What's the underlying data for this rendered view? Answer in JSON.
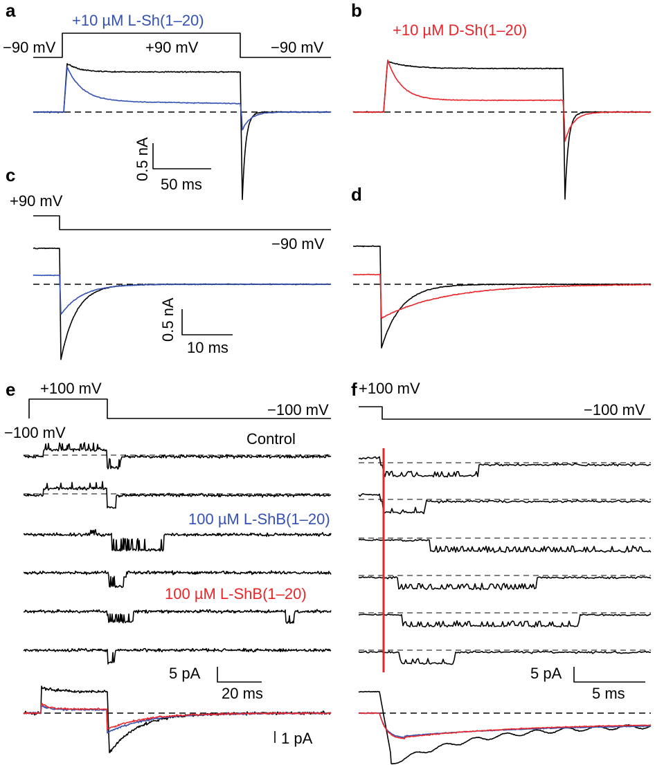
{
  "colors": {
    "control": "#000000",
    "l_peptide": "#3451b2",
    "d_peptide": "#e8262a",
    "baseline": "#000000"
  },
  "panels": {
    "a": {
      "letter": "a",
      "legend": "+10 µM L-Sh(1–20)",
      "v_hold": "−90 mV",
      "v_step": "+90 mV",
      "v_return": "−90 mV",
      "scale_y": "0.5 nA",
      "scale_x": "50 ms"
    },
    "b": {
      "letter": "b",
      "legend": "+10 µM D-Sh(1–20)"
    },
    "c": {
      "letter": "c",
      "v_step": "+90 mV",
      "v_return": "−90 mV",
      "scale_y": "0.5 nA",
      "scale_x": "10 ms"
    },
    "d": {
      "letter": "d"
    },
    "e": {
      "letter": "e",
      "v_step": "+100 mV",
      "v_hold": "−100 mV",
      "v_return": "−100 mV",
      "control_label": "Control",
      "blue_label": "100 µM L-ShB(1–20)",
      "red_label": "100 µM L-ShB(1–20)",
      "scale_y": "5 pA",
      "scale_x": "20 ms",
      "avg_scale": "1 pA"
    },
    "f": {
      "letter": "f",
      "v_step": "+100 mV",
      "v_return": "−100 mV",
      "scale_y": "5 pA",
      "scale_x": "5 ms"
    }
  },
  "chart_data": [
    {
      "panel": "a",
      "type": "line",
      "xlabel": "",
      "ylabel": "",
      "series": [
        {
          "color": "black",
          "values_nA": {
            "baseline": 0,
            "peak": 0.86,
            "end_of_pulse": 0.72,
            "tail_min": -1.6
          }
        },
        {
          "color": "blue",
          "values_nA": {
            "baseline": 0,
            "peak": 0.82,
            "end_of_pulse": 0.18,
            "tail_min": -0.6
          }
        }
      ]
    },
    {
      "panel": "b",
      "type": "line",
      "xlabel": "",
      "ylabel": "",
      "series": [
        {
          "color": "black",
          "values_nA": {
            "baseline": 0,
            "peak": 0.9,
            "end_of_pulse": 0.75,
            "tail_min": -1.6
          }
        },
        {
          "color": "red",
          "values_nA": {
            "baseline": 0,
            "peak": 0.9,
            "end_of_pulse": 0.2,
            "tail_min": -0.6
          }
        }
      ]
    },
    {
      "panel": "c",
      "type": "line",
      "xlabel": "",
      "ylabel": "",
      "series": [
        {
          "color": "black",
          "values_nA": {
            "pre_step": 0.65,
            "tail_min": -1.35
          }
        },
        {
          "color": "blue",
          "values_nA": {
            "pre_step": 0.16,
            "tail_min": -0.5
          }
        }
      ]
    },
    {
      "panel": "d",
      "type": "line",
      "xlabel": "",
      "ylabel": "",
      "series": [
        {
          "color": "black",
          "values_nA": {
            "pre_step": 0.65,
            "tail_min": -1.1
          }
        },
        {
          "color": "red",
          "values_nA": {
            "pre_step": 0.2,
            "tail_min": -0.59
          }
        }
      ]
    },
    {
      "panel": "e",
      "type": "line",
      "xlabel": "",
      "ylabel": "",
      "sweeps": [
        "control",
        "control",
        "blue",
        "blue",
        "red",
        "red"
      ],
      "series": [
        {
          "color": "black",
          "values_pA": {
            "depolarized_avg": 1.9,
            "tail_min": -3.0
          }
        },
        {
          "color": "blue",
          "values_pA": {
            "depolarized_avg": 0.3,
            "tail_min": -1.3
          }
        },
        {
          "color": "red",
          "values_pA": {
            "depolarized_avg": 0.4,
            "tail_min": -1.1
          }
        }
      ]
    },
    {
      "panel": "f",
      "type": "line",
      "xlabel": "",
      "ylabel": "",
      "series": [
        {
          "color": "black",
          "values_pA": {
            "initial": 1.6,
            "tail_min": -3.0
          }
        },
        {
          "color": "blue",
          "values_pA": {
            "tail_min": -1.1
          }
        },
        {
          "color": "red",
          "values_pA": {
            "tail_min": -1.2
          }
        }
      ]
    }
  ]
}
